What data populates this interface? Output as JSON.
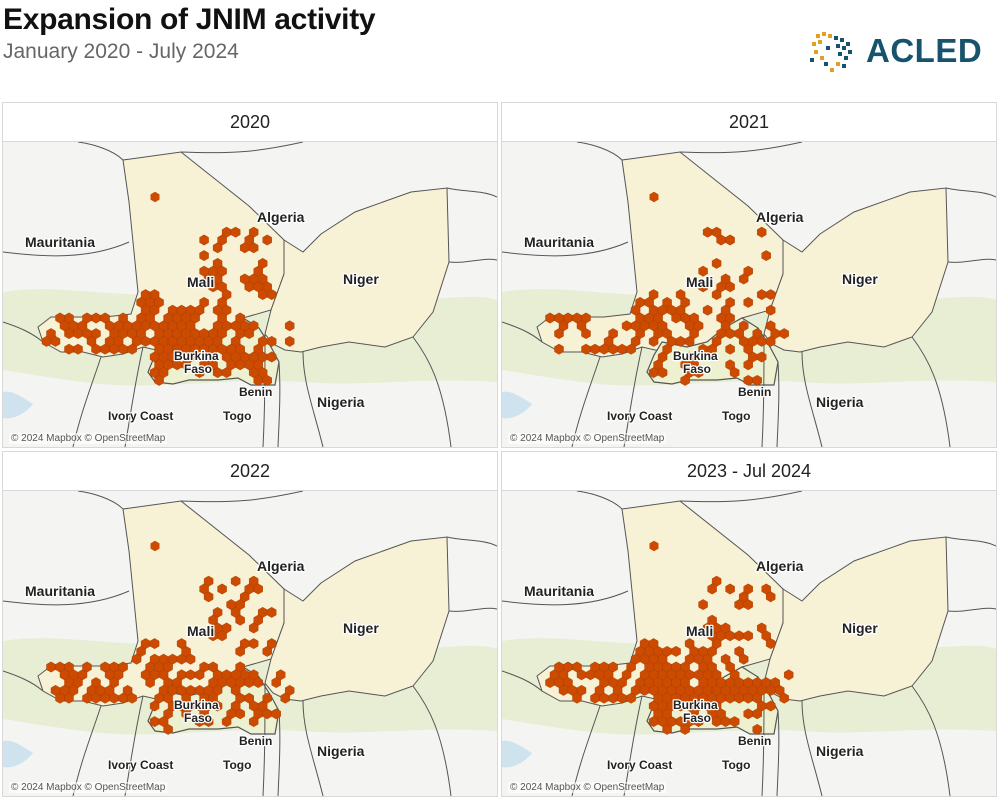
{
  "header": {
    "title": "Expansion of JNIM activity",
    "subtitle": "January 2020 - July 2024",
    "logo_text": "ACLED"
  },
  "colors": {
    "event_hex": "#cc4b00",
    "mali_fill": "#f7f1d6",
    "niger_fill": "#f7f1d6",
    "burkina_fill": "#eef1d0",
    "vegetation": "#e2ebc8",
    "land": "#f4f4f2",
    "water": "#cfe3ee",
    "border": "#555555"
  },
  "map": {
    "attribution": "© 2024 Mapbox © OpenStreetMap",
    "labels": {
      "mauritania": "Mauritania",
      "algeria": "Algeria",
      "mali": "Mali",
      "niger": "Niger",
      "burkina": "Burkina",
      "faso": "Faso",
      "nigeria": "Nigeria",
      "benin": "Benin",
      "ivory_coast": "Ivory Coast",
      "togo": "Togo"
    }
  },
  "panels": [
    {
      "title": "2020",
      "intensity": 0.9
    },
    {
      "title": "2021",
      "intensity": 0.55
    },
    {
      "title": "2022",
      "intensity": 0.8
    },
    {
      "title": "2023 - Jul 2024",
      "intensity": 0.95
    }
  ]
}
